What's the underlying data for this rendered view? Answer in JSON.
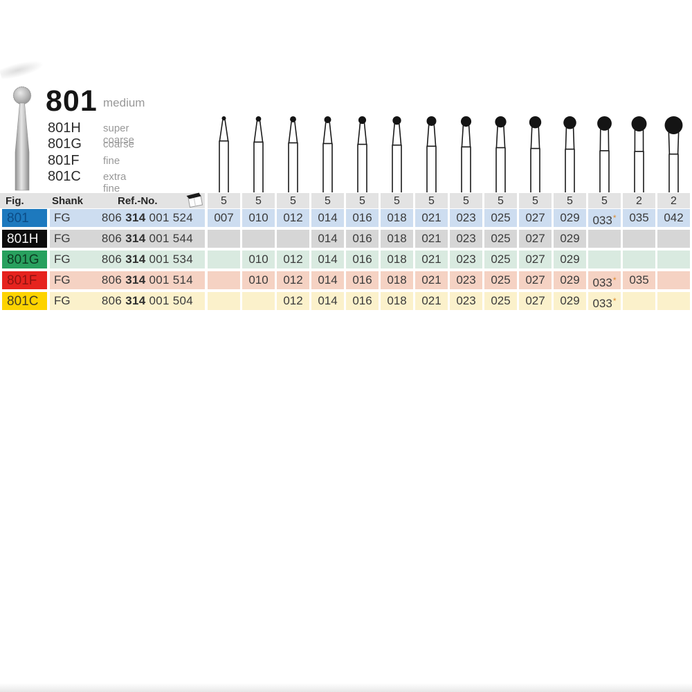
{
  "product": {
    "figure": "801",
    "grit": "medium",
    "variants": [
      {
        "code": "801H",
        "grit": "super coarse"
      },
      {
        "code": "801G",
        "grit": "coarse"
      },
      {
        "code": "801F",
        "grit": "fine"
      },
      {
        "code": "801C",
        "grit": "extra fine"
      }
    ]
  },
  "table": {
    "headers": {
      "fig": "Fig.",
      "shank": "Shank",
      "ref": "Ref.-No."
    },
    "pack_icon": "package-icon",
    "sizes": [
      "007",
      "010",
      "012",
      "014",
      "016",
      "018",
      "021",
      "023",
      "025",
      "027",
      "029",
      "033",
      "035",
      "042"
    ],
    "packs": [
      "5",
      "5",
      "5",
      "5",
      "5",
      "5",
      "5",
      "5",
      "5",
      "5",
      "5",
      "5",
      "2",
      "2"
    ],
    "star_symbol": "*",
    "star_color": "#dd8a2c",
    "rows": [
      {
        "fig": "801",
        "shank": "FG",
        "ref": [
          "806",
          "314",
          "001",
          "524"
        ],
        "available": [
          "007",
          "010",
          "012",
          "014",
          "016",
          "018",
          "021",
          "023",
          "025",
          "027",
          "029",
          "033",
          "035",
          "042"
        ],
        "starred": [
          "033"
        ],
        "chip_bg": "#1d79be",
        "chip_fg": "#0c4c86",
        "row_bg": "#cdddf0"
      },
      {
        "fig": "801H",
        "shank": "FG",
        "ref": [
          "806",
          "314",
          "001",
          "544"
        ],
        "available": [
          "014",
          "016",
          "018",
          "021",
          "023",
          "025",
          "027",
          "029"
        ],
        "starred": [],
        "chip_bg": "#0c0c0c",
        "chip_fg": "#f4f4f4",
        "row_bg": "#d6d6d6"
      },
      {
        "fig": "801G",
        "shank": "FG",
        "ref": [
          "806",
          "314",
          "001",
          "534"
        ],
        "available": [
          "010",
          "012",
          "014",
          "016",
          "018",
          "021",
          "023",
          "025",
          "027",
          "029"
        ],
        "starred": [],
        "chip_bg": "#28a05e",
        "chip_fg": "#0c3a21",
        "row_bg": "#d9eae0"
      },
      {
        "fig": "801F",
        "shank": "FG",
        "ref": [
          "806",
          "314",
          "001",
          "514"
        ],
        "available": [
          "010",
          "012",
          "014",
          "016",
          "018",
          "021",
          "023",
          "025",
          "027",
          "029",
          "033",
          "035"
        ],
        "starred": [
          "033"
        ],
        "chip_bg": "#e6231e",
        "chip_fg": "#8f1310",
        "row_bg": "#f5d2c3"
      },
      {
        "fig": "801C",
        "shank": "FG",
        "ref": [
          "806",
          "314",
          "001",
          "504"
        ],
        "available": [
          "012",
          "014",
          "016",
          "018",
          "021",
          "023",
          "025",
          "027",
          "029",
          "033"
        ],
        "starred": [
          "033"
        ],
        "chip_bg": "#fdd300",
        "chip_fg": "#474021",
        "row_bg": "#fbf1cb"
      }
    ]
  }
}
